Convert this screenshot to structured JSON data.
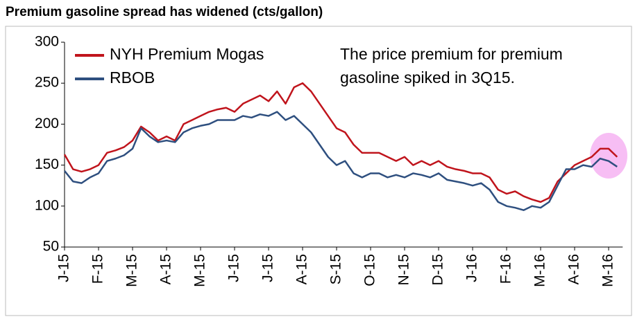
{
  "chart_data": {
    "type": "line",
    "title": "Premium gasoline spread has widened (cts/gallon)",
    "annotation": [
      "The price premium for premium",
      "gasoline spiked in 3Q15."
    ],
    "categories": [
      "J-15",
      null,
      null,
      null,
      "F-15",
      null,
      null,
      null,
      "M-15",
      null,
      null,
      null,
      "A-15",
      null,
      null,
      null,
      "M-15",
      null,
      null,
      null,
      "J-15",
      null,
      null,
      null,
      "J-15",
      null,
      null,
      null,
      "A-15",
      null,
      null,
      null,
      "S-15",
      null,
      null,
      null,
      "O-15",
      null,
      null,
      null,
      "N-15",
      null,
      null,
      null,
      "D-15",
      null,
      null,
      null,
      "J-16",
      null,
      null,
      null,
      "F-16",
      null,
      null,
      null,
      "M-16",
      null,
      null,
      null,
      "A-16",
      null,
      null,
      null,
      "M-16",
      null
    ],
    "series": [
      {
        "name": "NYH Premium Mogas",
        "color": "#c0141c",
        "values": [
          163,
          145,
          142,
          145,
          150,
          165,
          168,
          172,
          180,
          197,
          190,
          180,
          185,
          180,
          200,
          205,
          210,
          215,
          218,
          220,
          215,
          225,
          230,
          235,
          228,
          240,
          225,
          245,
          250,
          240,
          225,
          210,
          195,
          190,
          175,
          165,
          165,
          165,
          160,
          155,
          160,
          150,
          155,
          150,
          155,
          148,
          145,
          143,
          140,
          140,
          135,
          120,
          115,
          118,
          112,
          108,
          105,
          110,
          130,
          140,
          150,
          155,
          160,
          170,
          170,
          160
        ]
      },
      {
        "name": "RBOB",
        "color": "#2e4f7f",
        "values": [
          143,
          130,
          128,
          135,
          140,
          155,
          158,
          162,
          170,
          195,
          185,
          178,
          180,
          178,
          190,
          195,
          198,
          200,
          205,
          205,
          205,
          210,
          208,
          212,
          210,
          215,
          205,
          210,
          200,
          190,
          175,
          160,
          150,
          155,
          140,
          135,
          140,
          140,
          135,
          138,
          135,
          140,
          138,
          135,
          140,
          132,
          130,
          128,
          125,
          128,
          120,
          105,
          100,
          98,
          95,
          100,
          98,
          105,
          125,
          145,
          145,
          150,
          148,
          158,
          155,
          148
        ]
      }
    ],
    "ylim": [
      50,
      300
    ],
    "yticks": [
      50,
      100,
      150,
      200,
      250,
      300
    ],
    "legend": "upper left"
  }
}
